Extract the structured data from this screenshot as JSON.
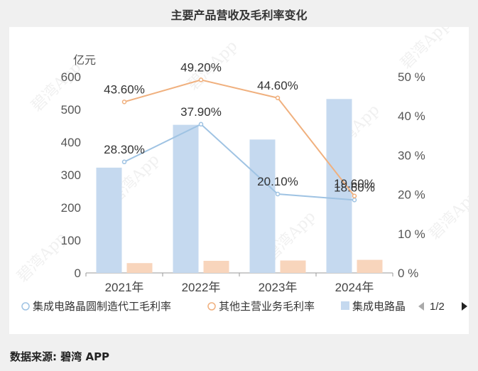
{
  "page": {
    "title": "主要产品营收及毛利率变化",
    "source_label": "数据来源:",
    "source_value": "碧湾 APP",
    "watermark": "碧湾App"
  },
  "legend": {
    "pager": "1/2",
    "items": [
      "集成电路晶圆制造代工毛利率",
      "其他主营业务毛利率",
      "集成电路晶"
    ]
  },
  "chart_data": {
    "type": "bar",
    "categories": [
      "2021年",
      "2022年",
      "2023年",
      "2024年"
    ],
    "left_axis": {
      "unit": "亿元",
      "ylim": [
        0,
        600
      ],
      "ticks": [
        "0",
        "100",
        "200",
        "300",
        "400",
        "500",
        "600"
      ]
    },
    "right_axis": {
      "ylim": [
        0,
        50
      ],
      "ticks": [
        "0 %",
        "10 %",
        "20 %",
        "30 %",
        "40 %",
        "50 %"
      ]
    },
    "series": [
      {
        "type": "bar",
        "axis": "left",
        "color": "#c5d9ef",
        "values": [
          322,
          453,
          408,
          532
        ]
      },
      {
        "type": "bar",
        "axis": "left",
        "color": "#f8d5bc",
        "values": [
          30,
          37,
          38,
          40
        ]
      },
      {
        "type": "line",
        "axis": "right",
        "name": "集成电路晶圆制造代工毛利率",
        "color": "#9fc3e3",
        "values": [
          28.3,
          37.9,
          20.1,
          18.6
        ],
        "labels": [
          "28.30%",
          "37.90%",
          "20.10%",
          "18.60%"
        ]
      },
      {
        "type": "line",
        "axis": "right",
        "name": "其他主营业务毛利率",
        "color": "#f0b07e",
        "values": [
          43.6,
          49.2,
          44.6,
          19.6
        ],
        "labels": [
          "43.60%",
          "49.20%",
          "44.60%",
          "19.60%"
        ]
      }
    ],
    "grid": false
  }
}
